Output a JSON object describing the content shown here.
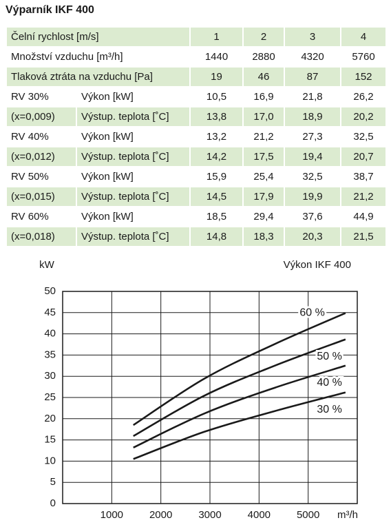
{
  "title": "Výparník IKF 400",
  "table": {
    "rows": [
      [
        "Čelní rychlost [m/s]",
        "1",
        "2",
        "3",
        "4"
      ],
      [
        "Množství vzduchu [m³/h]",
        "1440",
        "2880",
        "4320",
        "5760"
      ],
      [
        "Tlaková ztráta na vzduchu [Pa]",
        "19",
        "46",
        "87",
        "152"
      ],
      [
        "RV 30%",
        "Výkon [kW]",
        "10,5",
        "16,9",
        "21,8",
        "26,2"
      ],
      [
        "(x=0,009)",
        "Výstup. teplota [˚C]",
        "13,8",
        "17,0",
        "18,9",
        "20,2"
      ],
      [
        "RV 40%",
        "Výkon [kW]",
        "13,2",
        "21,2",
        "27,3",
        "32,5"
      ],
      [
        "(x=0,012)",
        "Výstup. teplota [˚C]",
        "14,2",
        "17,5",
        "19,4",
        "20,7"
      ],
      [
        "RV 50%",
        "Výkon [kW]",
        "15,9",
        "25,4",
        "32,5",
        "38,7"
      ],
      [
        "(x=0,015)",
        "Výstup. teplota [˚C]",
        "14,5",
        "17,9",
        "19,9",
        "21,2"
      ],
      [
        "RV 60%",
        "Výkon [kW]",
        "18,5",
        "29,4",
        "37,6",
        "44,9"
      ],
      [
        "(x=0,018)",
        "Výstup. teplota [˚C]",
        "14,8",
        "18,3",
        "20,3",
        "21,5"
      ]
    ]
  },
  "chart_data": {
    "type": "line",
    "title": "Výkon IKF 400",
    "y_label": "kW",
    "x_label": "m³/h",
    "x": [
      1440,
      2880,
      4320,
      5760
    ],
    "series": [
      {
        "name": "30 %",
        "color": "#1a1a1a",
        "values": [
          10.5,
          16.9,
          21.8,
          26.2
        ]
      },
      {
        "name": "40 %",
        "color": "#1a1a1a",
        "values": [
          13.2,
          21.2,
          27.3,
          32.5
        ]
      },
      {
        "name": "50 %",
        "color": "#1a1a1a",
        "values": [
          15.9,
          25.4,
          32.5,
          38.7
        ]
      },
      {
        "name": "60 %",
        "color": "#1a1a1a",
        "values": [
          18.5,
          29.4,
          37.6,
          44.9
        ]
      }
    ],
    "xlim": [
      0,
      6000
    ],
    "xticks": [
      1000,
      2000,
      3000,
      4000,
      5000
    ],
    "ylim": [
      0,
      50
    ],
    "yticks": [
      0,
      5,
      10,
      15,
      20,
      25,
      30,
      35,
      40,
      45,
      50
    ],
    "grid": true
  }
}
